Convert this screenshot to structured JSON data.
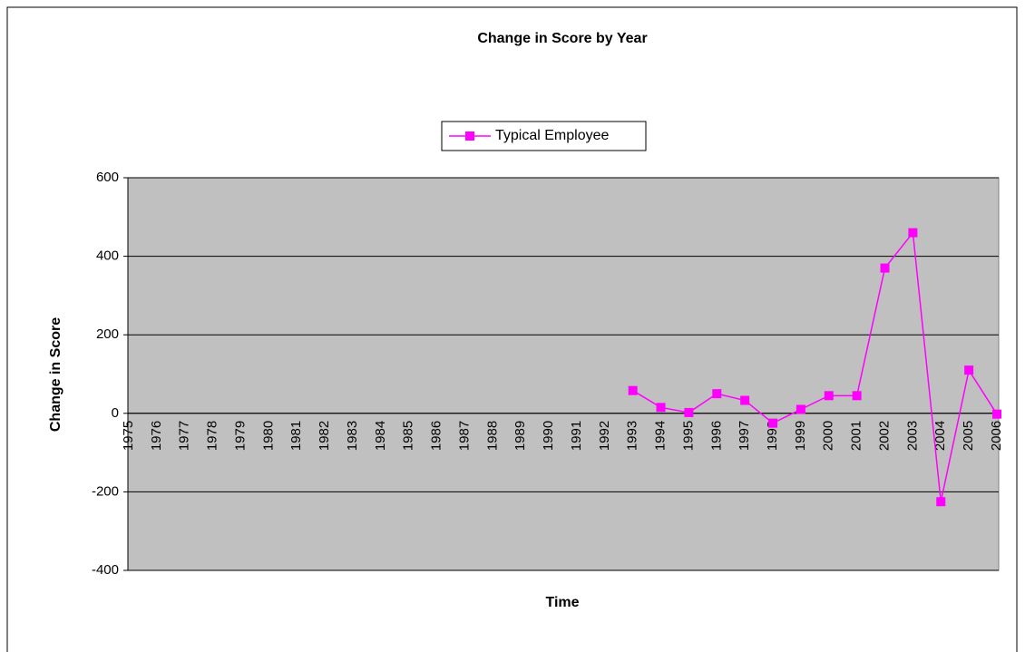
{
  "chart_data": {
    "type": "line",
    "title": "Change in Score by Year",
    "x_label": "Time",
    "y_label": "Change in Score",
    "categories": [
      "1975",
      "1976",
      "1977",
      "1978",
      "1979",
      "1980",
      "1981",
      "1982",
      "1983",
      "1984",
      "1985",
      "1986",
      "1987",
      "1988",
      "1989",
      "1990",
      "1991",
      "1992",
      "1993",
      "1994",
      "1995",
      "1996",
      "1997",
      "1998",
      "1999",
      "2000",
      "2001",
      "2002",
      "2003",
      "2004",
      "2005",
      "2006"
    ],
    "series": [
      {
        "name": "Typical Employee",
        "color": "#ff00ff",
        "values": [
          null,
          null,
          null,
          null,
          null,
          null,
          null,
          null,
          null,
          null,
          null,
          null,
          null,
          null,
          null,
          null,
          null,
          null,
          58,
          15,
          2,
          50,
          33,
          -25,
          10,
          45,
          45,
          370,
          460,
          -225,
          110,
          -2
        ]
      }
    ],
    "ylim": [
      -400,
      600
    ],
    "yticks": [
      -400,
      -200,
      0,
      200,
      400,
      600
    ],
    "grid": true,
    "legend": "top",
    "plot_background": "#c0c0c0"
  }
}
